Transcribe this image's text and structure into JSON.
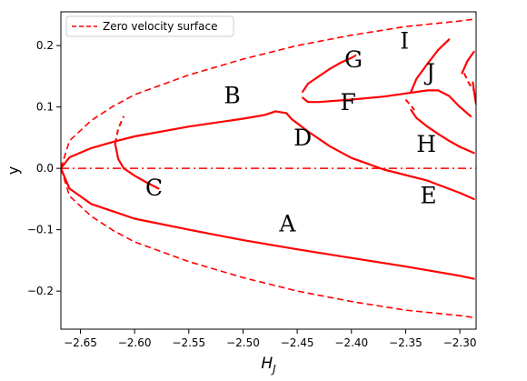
{
  "chart_data": {
    "type": "line",
    "title": "",
    "xlabel": "H",
    "xlabel_sub": "J",
    "ylabel": "y",
    "xlim": [
      -2.668,
      -2.285
    ],
    "ylim": [
      -0.262,
      0.255
    ],
    "xticks": [
      -2.65,
      -2.6,
      -2.55,
      -2.5,
      -2.45,
      -2.4,
      -2.35,
      -2.3
    ],
    "xtick_labels": [
      "−2.65",
      "−2.60",
      "−2.55",
      "−2.50",
      "−2.45",
      "−2.40",
      "−2.35",
      "−2.30"
    ],
    "yticks": [
      -0.2,
      -0.1,
      0.0,
      0.1,
      0.2
    ],
    "ytick_labels": [
      "−0.2",
      "−0.1",
      "0.0",
      "0.1",
      "0.2"
    ],
    "legend": {
      "position": "upper-left",
      "entries": [
        "Zero velocity surface"
      ]
    },
    "color": "#ff0000",
    "zero_velocity_surface": {
      "name": "Zero velocity surface",
      "style": "dashed",
      "x_vertex": -2.668,
      "points_upper": [
        [
          -2.668,
          0.0
        ],
        [
          -2.66,
          0.045
        ],
        [
          -2.64,
          0.078
        ],
        [
          -2.62,
          0.101
        ],
        [
          -2.6,
          0.12
        ],
        [
          -2.55,
          0.152
        ],
        [
          -2.5,
          0.178
        ],
        [
          -2.45,
          0.2
        ],
        [
          -2.4,
          0.217
        ],
        [
          -2.35,
          0.231
        ],
        [
          -2.3,
          0.24
        ],
        [
          -2.287,
          0.243
        ]
      ]
    },
    "center_line": {
      "y": 0.0,
      "style": "dashdot",
      "x_range": [
        -2.668,
        -2.285
      ]
    },
    "series": [
      {
        "label": "A",
        "style": "solid",
        "points": [
          [
            -2.668,
            0.0
          ],
          [
            -2.66,
            -0.033
          ],
          [
            -2.64,
            -0.058
          ],
          [
            -2.6,
            -0.082
          ],
          [
            -2.55,
            -0.1
          ],
          [
            -2.5,
            -0.117
          ],
          [
            -2.45,
            -0.132
          ],
          [
            -2.4,
            -0.146
          ],
          [
            -2.35,
            -0.16
          ],
          [
            -2.3,
            -0.175
          ],
          [
            -2.287,
            -0.18
          ]
        ]
      },
      {
        "label": "B",
        "style": "solid",
        "points": [
          [
            -2.668,
            0.0
          ],
          [
            -2.66,
            0.018
          ],
          [
            -2.64,
            0.033
          ],
          [
            -2.62,
            0.043
          ],
          [
            -2.6,
            0.052
          ],
          [
            -2.55,
            0.068
          ],
          [
            -2.5,
            0.081
          ],
          [
            -2.48,
            0.087
          ],
          [
            -2.47,
            0.093
          ],
          [
            -2.46,
            0.09
          ],
          [
            -2.455,
            0.08
          ]
        ]
      },
      {
        "label": "C",
        "style": "solid",
        "points": [
          [
            -2.618,
            0.04
          ],
          [
            -2.615,
            0.015
          ],
          [
            -2.61,
            0.0
          ],
          [
            -2.6,
            -0.012
          ],
          [
            -2.59,
            -0.022
          ],
          [
            -2.578,
            -0.033
          ]
        ]
      },
      {
        "label": "C-dashed",
        "style": "dashed",
        "points": [
          [
            -2.618,
            0.04
          ],
          [
            -2.615,
            0.065
          ],
          [
            -2.61,
            0.085
          ]
        ]
      },
      {
        "label": "D",
        "style": "solid",
        "points": [
          [
            -2.455,
            0.08
          ],
          [
            -2.44,
            0.06
          ],
          [
            -2.42,
            0.036
          ],
          [
            -2.4,
            0.017
          ],
          [
            -2.37,
            -0.002
          ],
          [
            -2.33,
            -0.02
          ],
          [
            -2.3,
            -0.04
          ],
          [
            -2.287,
            -0.05
          ]
        ]
      },
      {
        "label": "F",
        "style": "solid",
        "points": [
          [
            -2.445,
            0.115
          ],
          [
            -2.44,
            0.108
          ],
          [
            -2.43,
            0.108
          ],
          [
            -2.4,
            0.112
          ],
          [
            -2.37,
            0.117
          ],
          [
            -2.35,
            0.122
          ],
          [
            -2.33,
            0.127
          ],
          [
            -2.32,
            0.127
          ],
          [
            -2.31,
            0.118
          ],
          [
            -2.3,
            0.1
          ],
          [
            -2.29,
            0.085
          ]
        ]
      },
      {
        "label": "G",
        "style": "solid",
        "points": [
          [
            -2.445,
            0.125
          ],
          [
            -2.44,
            0.138
          ],
          [
            -2.43,
            0.15
          ],
          [
            -2.42,
            0.162
          ],
          [
            -2.41,
            0.172
          ],
          [
            -2.4,
            0.18
          ]
        ]
      },
      {
        "label": "G-dashed",
        "style": "dashed",
        "points": [
          [
            -2.4,
            0.18
          ],
          [
            -2.395,
            0.185
          ]
        ]
      },
      {
        "label": "H",
        "style": "solid",
        "points": [
          [
            -2.345,
            0.095
          ],
          [
            -2.34,
            0.082
          ],
          [
            -2.33,
            0.068
          ],
          [
            -2.32,
            0.056
          ],
          [
            -2.31,
            0.045
          ],
          [
            -2.3,
            0.035
          ],
          [
            -2.287,
            0.025
          ]
        ]
      },
      {
        "label": "I",
        "style": "solid",
        "points": [
          [
            -2.345,
            0.125
          ],
          [
            -2.34,
            0.146
          ],
          [
            -2.33,
            0.17
          ],
          [
            -2.32,
            0.193
          ],
          [
            -2.31,
            0.21
          ]
        ]
      },
      {
        "label": "J",
        "style": "dashed",
        "points": [
          [
            -2.35,
            0.112
          ],
          [
            -2.345,
            0.102
          ],
          [
            -2.342,
            0.095
          ]
        ]
      },
      {
        "label": "edge-upper",
        "style": "solid",
        "points": [
          [
            -2.298,
            0.155
          ],
          [
            -2.293,
            0.175
          ],
          [
            -2.287,
            0.19
          ]
        ]
      },
      {
        "label": "edge-lower",
        "style": "dashed",
        "points": [
          [
            -2.296,
            0.155
          ],
          [
            -2.292,
            0.14
          ],
          [
            -2.288,
            0.128
          ]
        ]
      },
      {
        "label": "edge-inner",
        "style": "solid",
        "points": [
          [
            -2.288,
            0.14
          ],
          [
            -2.286,
            0.115
          ],
          [
            -2.285,
            0.105
          ]
        ]
      }
    ],
    "annotations": [
      {
        "text": "A",
        "x": -2.459,
        "y": -0.103
      },
      {
        "text": "B",
        "x": -2.51,
        "y": 0.106
      },
      {
        "text": "C",
        "x": -2.582,
        "y": -0.044
      },
      {
        "text": "D",
        "x": -2.445,
        "y": 0.037
      },
      {
        "text": "E",
        "x": -2.329,
        "y": -0.057
      },
      {
        "text": "F",
        "x": -2.403,
        "y": 0.095
      },
      {
        "text": "G",
        "x": -2.398,
        "y": 0.165
      },
      {
        "text": "H",
        "x": -2.331,
        "y": 0.027
      },
      {
        "text": "I",
        "x": -2.351,
        "y": 0.195
      },
      {
        "text": "J",
        "x": -2.327,
        "y": 0.144
      }
    ]
  }
}
